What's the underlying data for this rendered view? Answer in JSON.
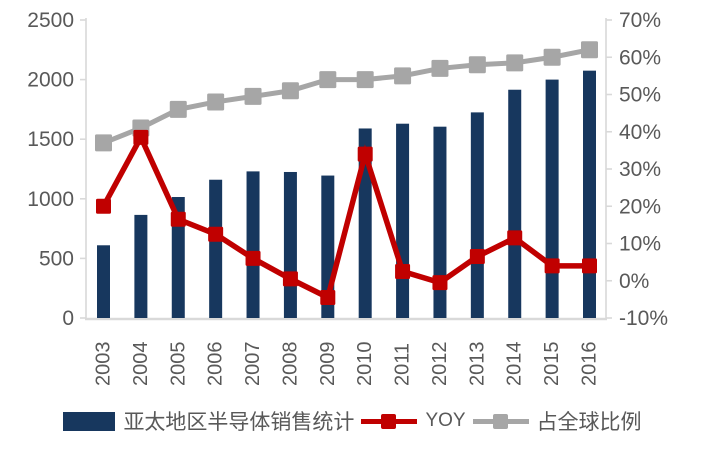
{
  "chart_data": {
    "type": "bar",
    "title": "",
    "categories": [
      "2003",
      "2004",
      "2005",
      "2006",
      "2007",
      "2008",
      "2009",
      "2010",
      "2011",
      "2012",
      "2013",
      "2014",
      "2015",
      "2016"
    ],
    "series": [
      {
        "name": "亚太地区半导体销售统计",
        "type": "bar",
        "axis": "left",
        "color": "#17375E",
        "values": [
          610,
          865,
          1015,
          1160,
          1230,
          1225,
          1195,
          1590,
          1630,
          1605,
          1725,
          1915,
          2000,
          2075
        ]
      },
      {
        "name": "YOY",
        "type": "line",
        "axis": "right",
        "color": "#C00000",
        "values": [
          20,
          38.5,
          16.5,
          12.5,
          6,
          0.5,
          -4.5,
          34,
          2.5,
          -0.5,
          6.5,
          11.5,
          4,
          4
        ]
      },
      {
        "name": "占全球比例",
        "type": "line",
        "axis": "right",
        "color": "#A6A6A6",
        "values": [
          37,
          41,
          46,
          48,
          49.5,
          51,
          54,
          54,
          55,
          57,
          58,
          58.5,
          60,
          62
        ]
      }
    ],
    "left_axis": {
      "min": 0,
      "max": 2500,
      "step": 500,
      "tick_labels": [
        "0",
        "500",
        "1000",
        "1500",
        "2000",
        "2500"
      ]
    },
    "right_axis": {
      "min": -10,
      "max": 70,
      "step": 10,
      "tick_labels": [
        "-10%",
        "0%",
        "10%",
        "20%",
        "30%",
        "40%",
        "50%",
        "60%",
        "70%"
      ]
    },
    "grid": false,
    "legend_position": "bottom",
    "x_label_rotation": -90
  },
  "style": {
    "axis_line_color": "#D9D9D9",
    "axis_text_color": "#595959",
    "background": "#FFFFFF"
  }
}
